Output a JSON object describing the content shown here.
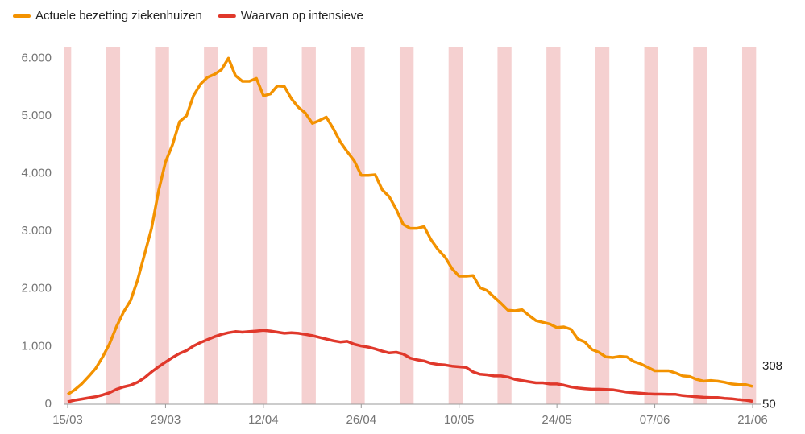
{
  "chart_data": {
    "type": "line",
    "categories": [
      "15/03",
      null,
      null,
      null,
      null,
      null,
      null,
      null,
      null,
      null,
      null,
      null,
      null,
      null,
      "29/03",
      null,
      null,
      null,
      null,
      null,
      null,
      null,
      null,
      null,
      null,
      null,
      null,
      null,
      "12/04",
      null,
      null,
      null,
      null,
      null,
      null,
      null,
      null,
      null,
      null,
      null,
      null,
      null,
      "26/04",
      null,
      null,
      null,
      null,
      null,
      null,
      null,
      null,
      null,
      null,
      null,
      null,
      null,
      "10/05",
      null,
      null,
      null,
      null,
      null,
      null,
      null,
      null,
      null,
      null,
      null,
      null,
      null,
      "24/05",
      null,
      null,
      null,
      null,
      null,
      null,
      null,
      null,
      null,
      null,
      null,
      null,
      null,
      "07/06",
      null,
      null,
      null,
      null,
      null,
      null,
      null,
      null,
      null,
      null,
      null,
      null,
      null,
      "21/06"
    ],
    "series": [
      {
        "name": "Actuele bezetting ziekenhuizen",
        "color": "#f39200",
        "values": [
          170,
          250,
          350,
          480,
          620,
          820,
          1050,
          1350,
          1600,
          1800,
          2150,
          2600,
          3050,
          3700,
          4200,
          4500,
          4900,
          5000,
          5350,
          5550,
          5670,
          5720,
          5800,
          6000,
          5700,
          5600,
          5600,
          5650,
          5350,
          5380,
          5520,
          5510,
          5300,
          5150,
          5050,
          4870,
          4920,
          4980,
          4780,
          4550,
          4380,
          4220,
          3970,
          3970,
          3980,
          3720,
          3600,
          3380,
          3120,
          3050,
          3050,
          3080,
          2850,
          2680,
          2550,
          2350,
          2220,
          2220,
          2230,
          2020,
          1970,
          1860,
          1750,
          1630,
          1620,
          1640,
          1540,
          1450,
          1420,
          1390,
          1330,
          1340,
          1300,
          1130,
          1080,
          950,
          900,
          820,
          810,
          830,
          820,
          740,
          700,
          640,
          580,
          580,
          580,
          540,
          490,
          480,
          430,
          400,
          410,
          400,
          380,
          350,
          340,
          340,
          308
        ]
      },
      {
        "name": "Waarvan op intensieve",
        "color": "#e0382b",
        "values": [
          40,
          70,
          90,
          110,
          130,
          160,
          200,
          260,
          300,
          330,
          380,
          460,
          560,
          650,
          730,
          810,
          880,
          930,
          1010,
          1070,
          1120,
          1170,
          1210,
          1240,
          1260,
          1250,
          1260,
          1270,
          1280,
          1270,
          1250,
          1230,
          1240,
          1230,
          1210,
          1190,
          1160,
          1130,
          1100,
          1080,
          1090,
          1040,
          1010,
          990,
          960,
          920,
          890,
          900,
          870,
          800,
          770,
          750,
          710,
          690,
          680,
          660,
          650,
          640,
          560,
          520,
          510,
          490,
          490,
          470,
          430,
          410,
          390,
          370,
          370,
          350,
          350,
          330,
          300,
          280,
          270,
          260,
          260,
          255,
          250,
          230,
          210,
          200,
          190,
          180,
          175,
          175,
          170,
          170,
          150,
          140,
          130,
          120,
          115,
          115,
          100,
          95,
          80,
          70,
          50
        ]
      }
    ],
    "ylim": [
      0,
      6200
    ],
    "yticks": [
      0,
      {
        "value": 1000,
        "label": "1.000"
      },
      {
        "value": 2000,
        "label": "2.000"
      },
      {
        "value": 3000,
        "label": "3.000"
      },
      {
        "value": 4000,
        "label": "4.000"
      },
      {
        "value": 5000,
        "label": "5.000"
      },
      {
        "value": 6000,
        "label": "6.000"
      }
    ],
    "legend": "top-left"
  }
}
